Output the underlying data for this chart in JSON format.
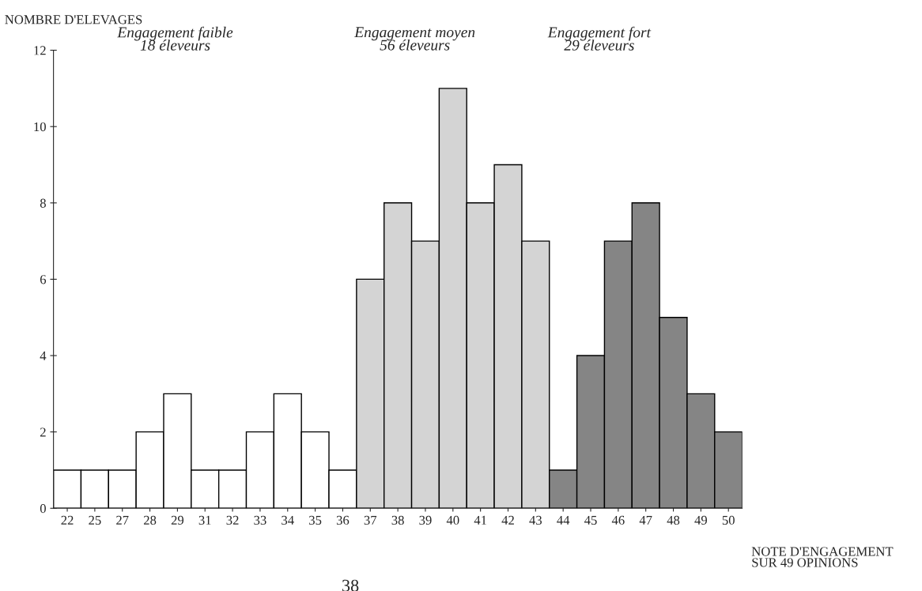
{
  "chart_data": {
    "type": "bar",
    "ylabel": "NOMBRE D'ELEVAGES",
    "xlabel": "NOTE D'ENGAGEMENT\nSUR 49 OPINIONS",
    "categories": [
      "22",
      "25",
      "27",
      "28",
      "29",
      "31",
      "32",
      "33",
      "34",
      "35",
      "36",
      "37",
      "38",
      "39",
      "40",
      "41",
      "42",
      "43",
      "44",
      "45",
      "46",
      "47",
      "48",
      "49",
      "50"
    ],
    "values": [
      1,
      1,
      1,
      2,
      3,
      1,
      1,
      2,
      3,
      2,
      1,
      6,
      8,
      7,
      11,
      8,
      9,
      7,
      1,
      4,
      7,
      8,
      5,
      3,
      2
    ],
    "colors": [
      "#ffffff",
      "#ffffff",
      "#ffffff",
      "#ffffff",
      "#ffffff",
      "#ffffff",
      "#ffffff",
      "#ffffff",
      "#ffffff",
      "#ffffff",
      "#ffffff",
      "#d4d4d4",
      "#d4d4d4",
      "#d4d4d4",
      "#d4d4d4",
      "#d4d4d4",
      "#d4d4d4",
      "#d4d4d4",
      "#858585",
      "#858585",
      "#858585",
      "#858585",
      "#858585",
      "#858585",
      "#858585"
    ],
    "ylim": [
      0,
      12
    ],
    "yticks": [
      0,
      2,
      4,
      6,
      8,
      10,
      12
    ],
    "grid": false,
    "legend": false,
    "annotations": [
      "Engagement faible\n18 éleveurs",
      "Engagement moyen\n56 éleveurs",
      "Engagement fort\n29 éleveurs",
      "38"
    ]
  }
}
